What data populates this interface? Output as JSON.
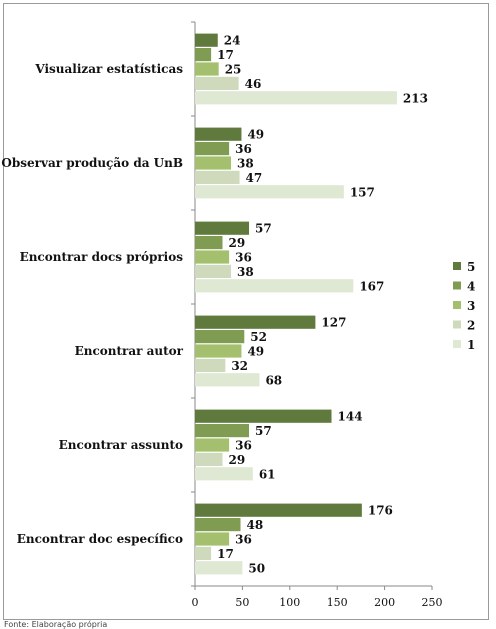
{
  "chart_data": {
    "type": "bar",
    "orientation": "horizontal",
    "categories": [
      "Visualizar estatísticas",
      "Observar produção da UnB",
      "Encontrar docs próprios",
      "Encontrar autor",
      "Encontrar assunto",
      "Encontrar doc específico"
    ],
    "series": [
      {
        "name": "5",
        "color": "#5f7a3c",
        "values": [
          24,
          49,
          57,
          127,
          144,
          176
        ]
      },
      {
        "name": "4",
        "color": "#7f9c52",
        "values": [
          17,
          36,
          29,
          52,
          57,
          48
        ]
      },
      {
        "name": "3",
        "color": "#a4c06e",
        "values": [
          25,
          38,
          36,
          49,
          36,
          36
        ]
      },
      {
        "name": "2",
        "color": "#cfd9bc",
        "values": [
          46,
          47,
          38,
          32,
          29,
          17
        ]
      },
      {
        "name": "1",
        "color": "#dfe8d2",
        "values": [
          213,
          157,
          167,
          68,
          61,
          50
        ]
      }
    ],
    "xlim": [
      0,
      250
    ],
    "xticks": [
      0,
      50,
      100,
      150,
      200,
      250
    ],
    "xlabel": "",
    "ylabel": "",
    "title": "",
    "legend": {
      "placement": "right",
      "order": [
        "5",
        "4",
        "3",
        "2",
        "1"
      ]
    },
    "grid": false,
    "data_labels": true
  },
  "footer_note": "Fonte: Elaboração própria"
}
